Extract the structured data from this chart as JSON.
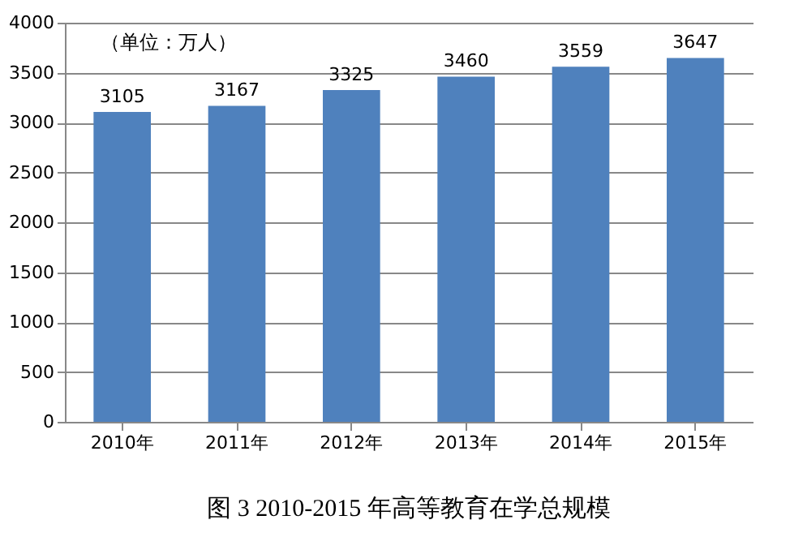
{
  "chart_data": {
    "type": "bar",
    "title": "图 3 2010-2015 年高等教育在学总规模",
    "annotations": [
      "（单位：万人）"
    ],
    "categories": [
      "2010年",
      "2011年",
      "2012年",
      "2013年",
      "2014年",
      "2015年"
    ],
    "values": [
      3105,
      3167,
      3325,
      3460,
      3559,
      3647
    ],
    "color": "#4f81bd",
    "data_labels": true,
    "ylim": [
      0,
      4000
    ],
    "yticks": [
      0,
      500,
      1000,
      1500,
      2000,
      2500,
      3000,
      3500,
      4000
    ],
    "grid": "y"
  }
}
